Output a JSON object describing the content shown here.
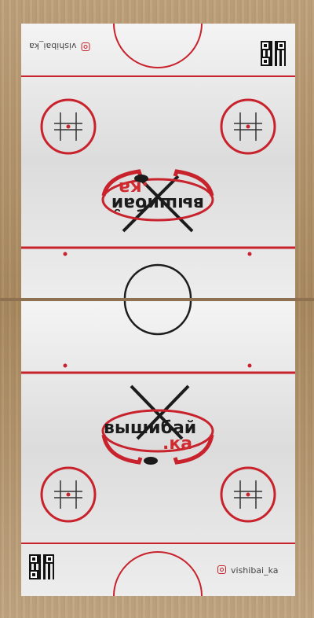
{
  "rink": {
    "logo_main": "вышибай",
    "logo_suffix": ".ка",
    "instagram_handle": "vishibai_ka"
  },
  "colors": {
    "red_line": "#c8222c",
    "blue_line": "#1d1d1d",
    "ice": "#ececec",
    "wood": "#b89a73"
  },
  "icons": [
    "instagram-icon",
    "qr-code",
    "hockey-stick",
    "puck"
  ]
}
